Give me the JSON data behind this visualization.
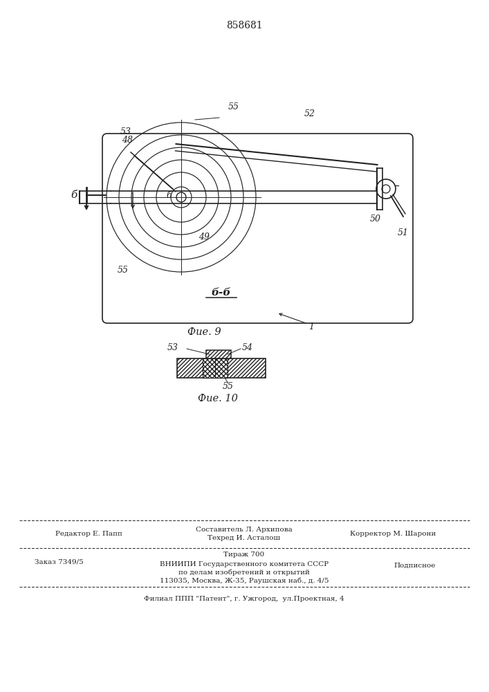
{
  "patent_number": "858681",
  "fig9_caption": "Фие. 9",
  "fig10_caption": "Фие. 10",
  "section_label": "б-б",
  "bg_color": "#ffffff",
  "line_color": "#222222",
  "footer": {
    "row1_left": "Редактор Е. Папп",
    "row1_center_1": "Составитель Л. Архипова",
    "row1_center_2": "Техред И. Асталош",
    "row1_right": "Корректор М. Шарони",
    "row2_left": "Заказ 7349/5",
    "row2_center_1": "Тираж 700",
    "row2_center_2": "ВНИИПИ Государственного комитета СССР",
    "row2_center_3": "по делам изобретений и открытий",
    "row2_center_4": "113035, Москва, Ж-35, Раушская наб., д. 4/5",
    "row2_right": "Подписное",
    "bottom": "Филиал ППП \"Патент\", г. Ужгород,  ул.Проектная, 4"
  }
}
